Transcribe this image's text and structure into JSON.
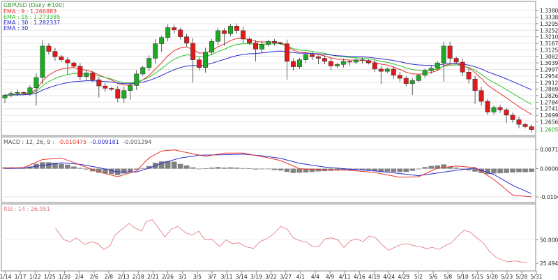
{
  "chart_data": [
    {
      "type": "candlestick",
      "panel": "price",
      "title": "GBPUSD (Daily #100)",
      "indicators": [
        {
          "label": "EMA : 9 : 1.266883",
          "color": "#e8342c"
        },
        {
          "label": "EMA : 15 : 1.273385",
          "color": "#33c22e"
        },
        {
          "label": "EMA : 30 : 1.282337",
          "color": "#2a2ad0"
        },
        {
          "label": "EMA : 30",
          "color": "#2a2ad0"
        }
      ],
      "colors": {
        "up": "#1fa824",
        "down": "#e0191b"
      },
      "y_ticks": [
        "1.33806",
        "1.33380",
        "1.32954",
        "1.32528",
        "1.32102",
        "1.31676",
        "1.31250",
        "1.30824",
        "1.30398",
        "1.29972",
        "1.29546",
        "1.29120",
        "1.28694",
        "1.28268",
        "1.27842",
        "1.27416",
        "1.26990",
        "1.26564"
      ],
      "last_price_label": "1.26059",
      "ylim": [
        1.2595,
        1.3395
      ],
      "closes": [
        1.283,
        1.2842,
        1.2848,
        1.2843,
        1.2878,
        1.2945,
        1.315,
        1.3115,
        1.308,
        1.306,
        1.304,
        1.3018,
        1.295,
        1.2975,
        1.293,
        1.289,
        1.2875,
        1.2868,
        1.281,
        1.286,
        1.2893,
        1.2968,
        1.301,
        1.307,
        1.3165,
        1.3205,
        1.327,
        1.3255,
        1.321,
        1.3168,
        1.306,
        1.301,
        1.311,
        1.318,
        1.325,
        1.323,
        1.328,
        1.325,
        1.3195,
        1.317,
        1.313,
        1.316,
        1.318,
        1.317,
        1.3165,
        1.305,
        1.3015,
        1.306,
        1.3095,
        1.308,
        1.307,
        1.305,
        1.302,
        1.303,
        1.305,
        1.3045,
        1.306,
        1.3055,
        1.304,
        1.3,
        1.2985,
        1.3,
        1.296,
        1.294,
        1.2905,
        1.2925,
        1.296,
        1.299,
        1.3005,
        1.304,
        1.315,
        1.307,
        1.3045,
        1.298,
        1.2935,
        1.286,
        1.279,
        1.272,
        1.275,
        1.2735,
        1.27,
        1.267,
        1.264,
        1.2625,
        1.2606
      ],
      "x_labels": [
        "1/14",
        "1/17",
        "1/22",
        "1/25",
        "1/30",
        "2/4",
        "2/6",
        "2/8",
        "2/13",
        "2/18",
        "2/21",
        "2/26",
        "3/1",
        "3/5",
        "3/7",
        "3/11",
        "3/14",
        "3/19",
        "3/22",
        "3/27",
        "4/1",
        "4/4",
        "4/9",
        "4/11",
        "4/16",
        "4/19",
        "4/24",
        "4/29",
        "5/2",
        "5/6",
        "5/8",
        "5/10",
        "5/15",
        "5/20",
        "5/23",
        "5/28",
        "5/31"
      ]
    },
    {
      "type": "histogram+line",
      "panel": "macd",
      "params_label": "MACD : 12, 26, 9 :",
      "values_label": [
        {
          "text": "-0.010475",
          "color": "#e8342c"
        },
        {
          "text": "-0.009181",
          "color": "#2a2ad0"
        },
        {
          "text": "-0.001294",
          "color": "#555555"
        }
      ],
      "y_ticks": [
        "0.007107",
        "0.000000",
        "-0.010479"
      ],
      "ylim": [
        -0.0118,
        0.0082
      ],
      "colors": {
        "macd": "#e8342c",
        "signal": "#2a2ad0",
        "histogram": "#808080"
      },
      "histogram": [
        0.0005,
        0.0005,
        0.0004,
        0.0003,
        0.0008,
        0.0018,
        0.0024,
        0.0024,
        0.0022,
        0.0018,
        0.0015,
        0.0008,
        0.0003,
        -0.0003,
        -0.001,
        -0.0015,
        -0.0018,
        -0.002,
        -0.0024,
        -0.0018,
        -0.0012,
        -0.0004,
        0.0002,
        0.001,
        0.0022,
        0.0027,
        0.0028,
        0.0026,
        0.0018,
        0.0012,
        0.0005,
        -0.0002,
        0.0001,
        0.0004,
        0.0006,
        0.0004,
        0.0005,
        0.0004,
        0.0002,
        0.0001,
        -0.0003,
        -0.0001,
        -0.0002,
        -0.0005,
        -0.0007,
        -0.0012,
        -0.0016,
        -0.0015,
        -0.0014,
        -0.0012,
        -0.001,
        -0.0009,
        -0.0008,
        -0.0007,
        -0.0006,
        -0.0006,
        -0.0004,
        -0.0005,
        -0.0006,
        -0.0008,
        -0.001,
        -0.0011,
        -0.0012,
        -0.0012,
        -0.0012,
        -0.0008,
        -0.0002,
        0.0006,
        0.001,
        0.0012,
        0.0016,
        0.0008,
        0.0004,
        -0.0001,
        -0.0006,
        -0.0011,
        -0.0016,
        -0.002,
        -0.0018,
        -0.0017,
        -0.0016,
        -0.0014,
        -0.0013,
        -0.0013,
        -0.0012
      ],
      "macd_pts": [
        [
          0,
          0.0002
        ],
        [
          3,
          0.0004
        ],
        [
          6,
          0.0034
        ],
        [
          9,
          0.004
        ],
        [
          12,
          0.0014
        ],
        [
          15,
          -0.0012
        ],
        [
          18,
          -0.003
        ],
        [
          21,
          -0.0008
        ],
        [
          23,
          0.004
        ],
        [
          25,
          0.0066
        ],
        [
          27,
          0.007
        ],
        [
          29,
          0.006
        ],
        [
          32,
          0.0046
        ],
        [
          35,
          0.0058
        ],
        [
          38,
          0.0058
        ],
        [
          41,
          0.0045
        ],
        [
          44,
          0.003
        ],
        [
          47,
          0.0
        ],
        [
          51,
          -0.0004
        ],
        [
          55,
          -0.0006
        ],
        [
          59,
          -0.0014
        ],
        [
          63,
          -0.0032
        ],
        [
          66,
          -0.003
        ],
        [
          69,
          0.0002
        ],
        [
          72,
          0.001
        ],
        [
          75,
          0.0004
        ],
        [
          78,
          -0.004
        ],
        [
          81,
          -0.0098
        ],
        [
          84,
          -0.0105
        ]
      ],
      "signal_pts": [
        [
          0,
          0.0001
        ],
        [
          3,
          0.0002
        ],
        [
          6,
          0.0012
        ],
        [
          9,
          0.0022
        ],
        [
          12,
          0.0016
        ],
        [
          15,
          0.0004
        ],
        [
          18,
          -0.0012
        ],
        [
          21,
          -0.0012
        ],
        [
          23,
          0.0002
        ],
        [
          25,
          0.002
        ],
        [
          28,
          0.004
        ],
        [
          31,
          0.005
        ],
        [
          35,
          0.0052
        ],
        [
          38,
          0.0054
        ],
        [
          41,
          0.0048
        ],
        [
          44,
          0.0038
        ],
        [
          47,
          0.002
        ],
        [
          51,
          0.0006
        ],
        [
          55,
          -0.0002
        ],
        [
          59,
          -0.0008
        ],
        [
          63,
          -0.0018
        ],
        [
          66,
          -0.0026
        ],
        [
          69,
          -0.0016
        ],
        [
          72,
          -0.0006
        ],
        [
          75,
          0.0002
        ],
        [
          78,
          -0.0022
        ],
        [
          81,
          -0.0062
        ],
        [
          84,
          -0.0093
        ]
      ]
    },
    {
      "type": "line",
      "panel": "rsi",
      "label": "RSI : 14 : 26.951",
      "color": "#e3727b",
      "y_ticks": [
        "50.000",
        "25.494"
      ],
      "ylim": [
        19,
        78
      ],
      "pts": [
        [
          24,
          62
        ],
        [
          28,
          50
        ],
        [
          31,
          48
        ],
        [
          34,
          52
        ],
        [
          38,
          45
        ],
        [
          41,
          48
        ],
        [
          44,
          46
        ],
        [
          47,
          40
        ],
        [
          50,
          44
        ],
        [
          52,
          54
        ],
        [
          55,
          60
        ],
        [
          59,
          67
        ],
        [
          62,
          62
        ],
        [
          65,
          59
        ],
        [
          67,
          69
        ],
        [
          70,
          71
        ],
        [
          73,
          62
        ],
        [
          76,
          53
        ],
        [
          79,
          61
        ],
        [
          82,
          64
        ],
        [
          86,
          57
        ],
        [
          89,
          55
        ],
        [
          92,
          59
        ],
        [
          95,
          50
        ],
        [
          98,
          51
        ],
        [
          102,
          43
        ],
        [
          105,
          50
        ],
        [
          108,
          46
        ],
        [
          111,
          47
        ],
        [
          114,
          43
        ],
        [
          118,
          41
        ],
        [
          121,
          48
        ],
        [
          124,
          51
        ],
        [
          127,
          55
        ],
        [
          131,
          64
        ],
        [
          134,
          61
        ],
        [
          137,
          52
        ],
        [
          140,
          49
        ],
        [
          143,
          48
        ],
        [
          146,
          43
        ],
        [
          149,
          43
        ],
        [
          152,
          51
        ],
        [
          155,
          52
        ],
        [
          158,
          50
        ],
        [
          161,
          42
        ],
        [
          164,
          49
        ],
        [
          167,
          51
        ],
        [
          170,
          48
        ],
        [
          173,
          54
        ],
        [
          176,
          52
        ],
        [
          179,
          45
        ],
        [
          182,
          39
        ],
        [
          185,
          42
        ],
        [
          188,
          45
        ],
        [
          191,
          46
        ],
        [
          194,
          44
        ],
        [
          197,
          43
        ],
        [
          200,
          41
        ],
        [
          203,
          42
        ],
        [
          206,
          40
        ],
        [
          209,
          44
        ],
        [
          212,
          47
        ],
        [
          215,
          54
        ],
        [
          218,
          60
        ],
        [
          221,
          58
        ],
        [
          224,
          52
        ],
        [
          227,
          47
        ],
        [
          230,
          38
        ],
        [
          233,
          32
        ],
        [
          236,
          29
        ],
        [
          239,
          27
        ],
        [
          242,
          28
        ],
        [
          245,
          27
        ],
        [
          248,
          26
        ]
      ]
    }
  ]
}
